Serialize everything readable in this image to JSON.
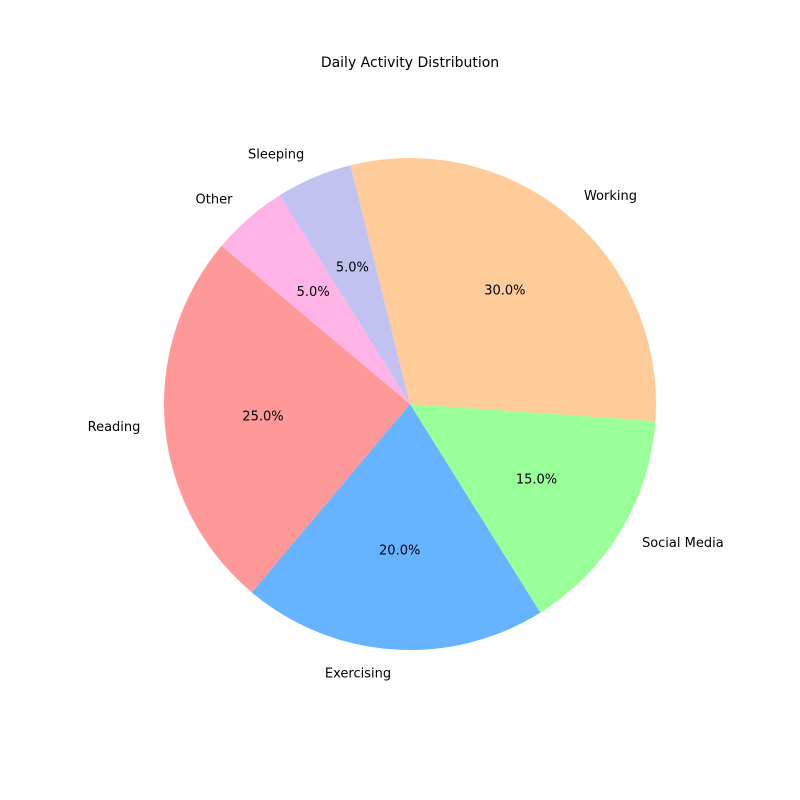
{
  "chart_data": {
    "type": "pie",
    "title": "Daily Activity Distribution",
    "start_angle_deg": 140,
    "direction": "counterclockwise",
    "slices": [
      {
        "label": "Reading",
        "value": 25,
        "pct_label": "25.0%",
        "color": "#ff9999"
      },
      {
        "label": "Exercising",
        "value": 20,
        "pct_label": "20.0%",
        "color": "#66b3ff"
      },
      {
        "label": "Social Media",
        "value": 15,
        "pct_label": "15.0%",
        "color": "#99ff99"
      },
      {
        "label": "Working",
        "value": 30,
        "pct_label": "30.0%",
        "color": "#ffcc99"
      },
      {
        "label": "Sleeping",
        "value": 5,
        "pct_label": "5.0%",
        "color": "#c2c2f0"
      },
      {
        "label": "Other",
        "value": 5,
        "pct_label": "5.0%",
        "color": "#ffb3e6"
      }
    ]
  }
}
